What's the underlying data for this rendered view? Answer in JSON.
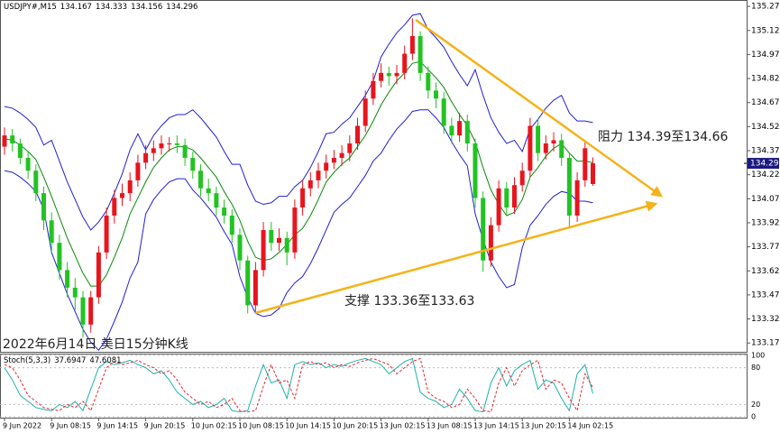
{
  "chart_data": {
    "type": "candlestick",
    "symbol": "USDJPY#,M15",
    "categories": [
      "9 Jun 2022",
      null,
      null,
      null,
      null,
      null,
      "9 Jun 08:15",
      null,
      null,
      null,
      null,
      null,
      "9 Jun 14:15",
      null,
      null,
      null,
      null,
      null,
      "9 Jun 20:15",
      null,
      null,
      null,
      null,
      null,
      "10 Jun 02:15",
      null,
      null,
      null,
      null,
      null,
      "10 Jun 08:15",
      null,
      null,
      null,
      null,
      null,
      "10 Jun 14:15",
      null,
      null,
      null,
      null,
      null,
      "10 Jun 20:15",
      null,
      null,
      null,
      null,
      null,
      "13 Jun 02:15",
      null,
      null,
      null,
      null,
      null,
      "13 Jun 08:15",
      null,
      null,
      null,
      null,
      null,
      "13 Jun 14:15",
      null,
      null,
      null,
      null,
      null,
      "13 Jun 20:15",
      null,
      null,
      null,
      null,
      null,
      "14 Jun 02:15",
      null,
      null,
      null
    ],
    "open": [
      134.4,
      134.47,
      134.42,
      134.33,
      134.25,
      134.11,
      133.94,
      133.8,
      133.63,
      133.52,
      133.46,
      133.29,
      133.46,
      133.74,
      133.97,
      134.08,
      134.11,
      134.19,
      134.3,
      134.36,
      134.39,
      134.42,
      134.42,
      134.41,
      134.33,
      134.25,
      134.14,
      134.11,
      134.02,
      133.97,
      133.85,
      133.69,
      133.41,
      133.63,
      133.88,
      133.8,
      133.83,
      133.74,
      134.02,
      134.14,
      134.19,
      134.25,
      134.3,
      134.33,
      134.36,
      134.42,
      134.53,
      134.7,
      134.81,
      134.86,
      134.84,
      134.86,
      134.98,
      135.09,
      134.86,
      134.75,
      134.7,
      134.53,
      134.47,
      134.56,
      134.42,
      134.08,
      133.69,
      133.91,
      134.14,
      134.02,
      134.16,
      134.25,
      134.53,
      134.36,
      134.42,
      134.44,
      134.33,
      133.97,
      134.19,
      134.167
    ],
    "high": [
      134.52,
      134.51,
      134.45,
      134.37,
      134.29,
      134.15,
      133.99,
      133.85,
      133.68,
      133.58,
      133.5,
      133.5,
      133.78,
      134.02,
      134.13,
      134.17,
      134.24,
      134.35,
      134.41,
      134.44,
      134.47,
      134.46,
      134.47,
      134.45,
      134.37,
      134.29,
      134.2,
      134.15,
      134.07,
      134.01,
      133.89,
      133.72,
      133.68,
      133.93,
      133.93,
      133.89,
      133.87,
      134.07,
      134.19,
      134.24,
      134.3,
      134.35,
      134.38,
      134.41,
      134.47,
      134.58,
      134.75,
      134.86,
      134.92,
      134.9,
      134.91,
      135.03,
      135.2,
      135.12,
      134.9,
      134.8,
      134.74,
      134.58,
      134.61,
      134.6,
      134.45,
      134.12,
      133.96,
      134.19,
      134.18,
      134.21,
      134.3,
      134.58,
      134.57,
      134.47,
      134.49,
      134.48,
      134.36,
      134.24,
      134.44,
      134.333
    ],
    "low": [
      134.35,
      134.37,
      134.29,
      134.2,
      134.06,
      133.88,
      133.74,
      133.57,
      133.46,
      133.38,
      133.21,
      133.24,
      133.42,
      133.7,
      133.92,
      134.03,
      134.06,
      134.15,
      134.26,
      134.31,
      134.35,
      134.37,
      134.36,
      134.28,
      134.2,
      134.09,
      134.06,
      133.97,
      133.92,
      133.8,
      133.63,
      133.36,
      133.37,
      133.59,
      133.75,
      133.75,
      133.66,
      133.7,
      133.97,
      134.09,
      134.14,
      134.2,
      134.26,
      134.28,
      134.31,
      134.38,
      134.49,
      134.66,
      134.77,
      134.78,
      134.79,
      134.82,
      134.94,
      134.81,
      134.7,
      134.64,
      134.48,
      134.42,
      134.43,
      134.37,
      134.02,
      133.62,
      133.65,
      133.87,
      133.97,
      133.98,
      134.12,
      134.21,
      134.31,
      134.32,
      134.37,
      134.28,
      133.9,
      133.93,
      134.15,
      134.156
    ],
    "close": [
      134.47,
      134.42,
      134.33,
      134.25,
      134.11,
      133.94,
      133.8,
      133.63,
      133.52,
      133.46,
      133.29,
      133.46,
      133.74,
      133.97,
      134.08,
      134.11,
      134.19,
      134.3,
      134.36,
      134.39,
      134.42,
      134.42,
      134.41,
      134.33,
      134.25,
      134.14,
      134.11,
      134.02,
      133.97,
      133.85,
      133.69,
      133.41,
      133.63,
      133.88,
      133.8,
      133.83,
      133.74,
      134.02,
      134.14,
      134.19,
      134.25,
      134.3,
      134.33,
      134.36,
      134.42,
      134.53,
      134.7,
      134.81,
      134.86,
      134.84,
      134.86,
      134.98,
      135.09,
      134.86,
      134.75,
      134.7,
      134.53,
      134.47,
      134.56,
      134.42,
      134.08,
      133.69,
      133.91,
      134.14,
      134.02,
      134.16,
      134.25,
      134.53,
      134.36,
      134.42,
      134.44,
      134.33,
      133.97,
      134.19,
      134.39,
      134.296
    ],
    "up_color": "#e8141e",
    "down_color": "#22c322",
    "ylim": [
      133.12,
      135.315
    ],
    "yticks": [
      133.175,
      133.325,
      133.475,
      133.625,
      133.775,
      133.925,
      134.075,
      134.225,
      134.375,
      134.525,
      134.675,
      134.825,
      134.975,
      135.125,
      135.275
    ],
    "bollinger": {
      "upper": [
        134.65,
        134.64,
        134.61,
        134.57,
        134.52,
        134.41,
        134.44,
        134.31,
        134.18,
        134.07,
        133.96,
        133.88,
        133.93,
        134.0,
        134.11,
        134.23,
        134.38,
        134.48,
        134.38,
        134.47,
        134.53,
        134.58,
        134.6,
        134.6,
        134.63,
        134.58,
        134.52,
        134.46,
        134.37,
        134.29,
        134.29,
        134.16,
        134.06,
        134.04,
        134.05,
        134.09,
        134.09,
        134.15,
        134.19,
        134.27,
        134.37,
        134.48,
        134.49,
        134.54,
        134.58,
        134.65,
        134.72,
        134.81,
        134.96,
        135.04,
        135.11,
        135.16,
        135.22,
        135.23,
        135.13,
        135.08,
        135.02,
        134.93,
        134.85,
        134.78,
        134.88,
        134.72,
        134.58,
        134.49,
        134.42,
        134.44,
        134.37,
        134.51,
        134.57,
        134.64,
        134.69,
        134.72,
        134.61,
        134.56,
        134.56,
        134.55
      ],
      "middle": [
        134.45,
        134.44,
        134.41,
        134.37,
        134.32,
        134.21,
        134.09,
        133.96,
        133.83,
        133.72,
        133.61,
        133.53,
        133.53,
        133.6,
        133.71,
        133.83,
        133.98,
        134.08,
        134.18,
        134.27,
        134.33,
        134.38,
        134.4,
        134.4,
        134.38,
        134.33,
        134.27,
        134.21,
        134.12,
        134.04,
        133.94,
        133.81,
        133.71,
        133.69,
        133.7,
        133.74,
        133.79,
        133.85,
        133.89,
        133.97,
        134.07,
        134.18,
        134.24,
        134.29,
        134.33,
        134.4,
        134.47,
        134.56,
        134.66,
        134.74,
        134.81,
        134.86,
        134.92,
        134.93,
        134.88,
        134.83,
        134.77,
        134.68,
        134.6,
        134.53,
        134.43,
        134.27,
        134.13,
        134.04,
        133.97,
        133.99,
        134.07,
        134.21,
        134.27,
        134.34,
        134.39,
        134.42,
        134.36,
        134.31,
        134.31,
        134.3
      ],
      "lower": [
        134.25,
        134.24,
        134.21,
        134.17,
        134.12,
        134.01,
        133.74,
        133.61,
        133.48,
        133.37,
        133.26,
        133.18,
        133.13,
        133.2,
        133.31,
        133.43,
        133.58,
        133.68,
        133.98,
        134.07,
        134.13,
        134.18,
        134.2,
        134.2,
        134.13,
        134.08,
        134.02,
        133.96,
        133.87,
        133.79,
        133.59,
        133.46,
        133.36,
        133.34,
        133.35,
        133.39,
        133.49,
        133.55,
        133.59,
        133.67,
        133.77,
        133.88,
        133.99,
        134.04,
        134.08,
        134.15,
        134.22,
        134.31,
        134.36,
        134.44,
        134.51,
        134.56,
        134.62,
        134.63,
        134.63,
        134.58,
        134.52,
        134.43,
        134.35,
        134.28,
        133.98,
        133.82,
        133.68,
        133.59,
        133.52,
        133.54,
        133.77,
        133.91,
        133.97,
        134.04,
        134.09,
        134.12,
        134.11,
        134.06,
        134.06,
        134.05
      ],
      "color": "#2020d0",
      "middle_color": "#0a8a0a"
    },
    "annotations": [
      "阻力 134.39至134.66",
      "支撑 133.36至133.63",
      "2022年6月14日 美日15分钟K线"
    ],
    "stochastic": {
      "title": "Stoch(5,3,3)",
      "main": [
        80,
        60,
        35,
        25,
        15,
        12,
        10,
        20,
        15,
        25,
        10,
        45,
        80,
        90,
        85,
        88,
        92,
        85,
        80,
        70,
        75,
        60,
        40,
        30,
        20,
        25,
        15,
        20,
        30,
        10,
        8,
        10,
        50,
        85,
        55,
        60,
        30,
        85,
        90,
        85,
        88,
        80,
        85,
        82,
        88,
        92,
        95,
        90,
        85,
        70,
        80,
        90,
        95,
        40,
        30,
        25,
        15,
        20,
        45,
        30,
        10,
        8,
        55,
        80,
        50,
        75,
        85,
        92,
        45,
        60,
        55,
        30,
        10,
        70,
        85,
        37.6947
      ],
      "signal": [
        85,
        80,
        60,
        35,
        25,
        15,
        12,
        10,
        20,
        15,
        25,
        10,
        45,
        80,
        90,
        85,
        88,
        92,
        85,
        80,
        70,
        75,
        60,
        40,
        30,
        20,
        25,
        15,
        20,
        30,
        10,
        8,
        10,
        50,
        85,
        55,
        60,
        30,
        85,
        90,
        85,
        88,
        80,
        85,
        82,
        88,
        92,
        95,
        90,
        85,
        70,
        80,
        90,
        95,
        40,
        30,
        25,
        15,
        20,
        45,
        30,
        10,
        8,
        55,
        80,
        50,
        75,
        85,
        92,
        45,
        60,
        55,
        30,
        10,
        70,
        47.6081
      ],
      "main_color": "#20b2aa",
      "signal_color": "#e0282e",
      "ylim": [
        0,
        100
      ],
      "yticks": [
        0,
        20,
        80,
        100
      ]
    }
  }
}
